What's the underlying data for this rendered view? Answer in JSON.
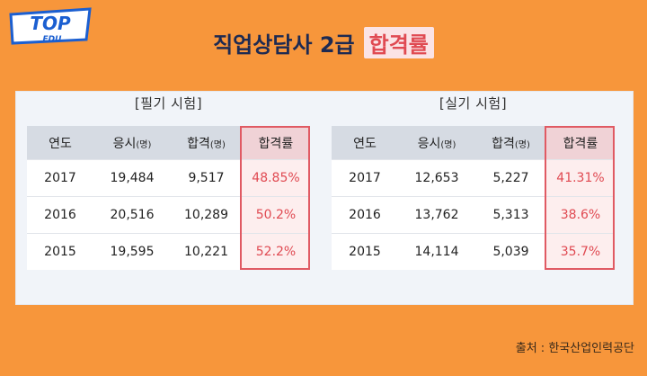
{
  "logo": {
    "top": "TOP",
    "sub": "EDU"
  },
  "title": {
    "main": "직업상담사 2급",
    "highlight": "합격률"
  },
  "written": {
    "heading": "[필기 시험]",
    "headers": {
      "year": "연도",
      "applicants": "응시",
      "applicants_unit": "(명)",
      "passed": "합격",
      "passed_unit": "(명)",
      "rate": "합격률"
    },
    "rows": [
      {
        "year": "2017",
        "applicants": "19,484",
        "passed": "9,517",
        "rate": "48.85%"
      },
      {
        "year": "2016",
        "applicants": "20,516",
        "passed": "10,289",
        "rate": "50.2%"
      },
      {
        "year": "2015",
        "applicants": "19,595",
        "passed": "10,221",
        "rate": "52.2%"
      }
    ]
  },
  "practical": {
    "heading": "[실기 시험]",
    "headers": {
      "year": "연도",
      "applicants": "응시",
      "applicants_unit": "(명)",
      "passed": "합격",
      "passed_unit": "(명)",
      "rate": "합격률"
    },
    "rows": [
      {
        "year": "2017",
        "applicants": "12,653",
        "passed": "5,227",
        "rate": "41.31%"
      },
      {
        "year": "2016",
        "applicants": "13,762",
        "passed": "5,313",
        "rate": "38.6%"
      },
      {
        "year": "2015",
        "applicants": "14,114",
        "passed": "5,039",
        "rate": "35.7%"
      }
    ]
  },
  "source": "출처 : 한국산업인력공단",
  "colors": {
    "background": "#f7963b",
    "accent": "#e04a52",
    "title": "#1d2a52",
    "header_bg": "#d6dbe3"
  }
}
